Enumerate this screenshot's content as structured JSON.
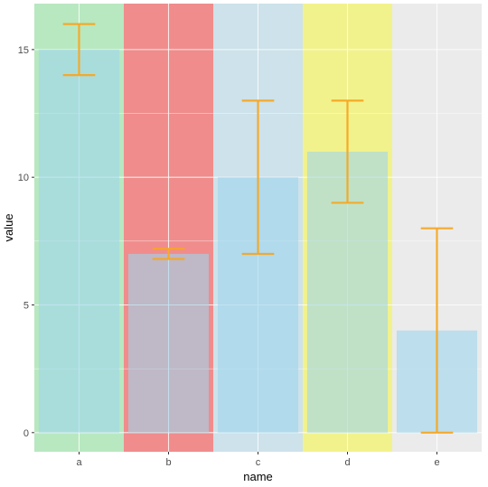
{
  "chart_data": {
    "type": "bar",
    "title": "",
    "xlabel": "name",
    "ylabel": "value",
    "categories": [
      "a",
      "b",
      "c",
      "d",
      "e"
    ],
    "values": [
      15,
      7,
      10,
      11,
      4
    ],
    "error_low": [
      14,
      6.8,
      7,
      9,
      0
    ],
    "error_high": [
      16,
      7.2,
      13,
      13,
      8
    ],
    "ylim": [
      -0.75,
      16.8
    ],
    "yticks": [
      0,
      5,
      10,
      15
    ],
    "grid": true,
    "background_bands": [
      {
        "category": "a",
        "color": "#b8e8c0"
      },
      {
        "category": "b",
        "color": "#f08c8c"
      },
      {
        "category": "c",
        "color": "#cde2ea"
      },
      {
        "category": "d",
        "color": "#f2f28c"
      },
      {
        "category": "e",
        "color": "#ebebeb"
      }
    ],
    "colors": {
      "bar": "#9fd6ec",
      "errorbar": "#f5a623",
      "panel": "#ebebeb",
      "grid": "#ffffff"
    }
  }
}
